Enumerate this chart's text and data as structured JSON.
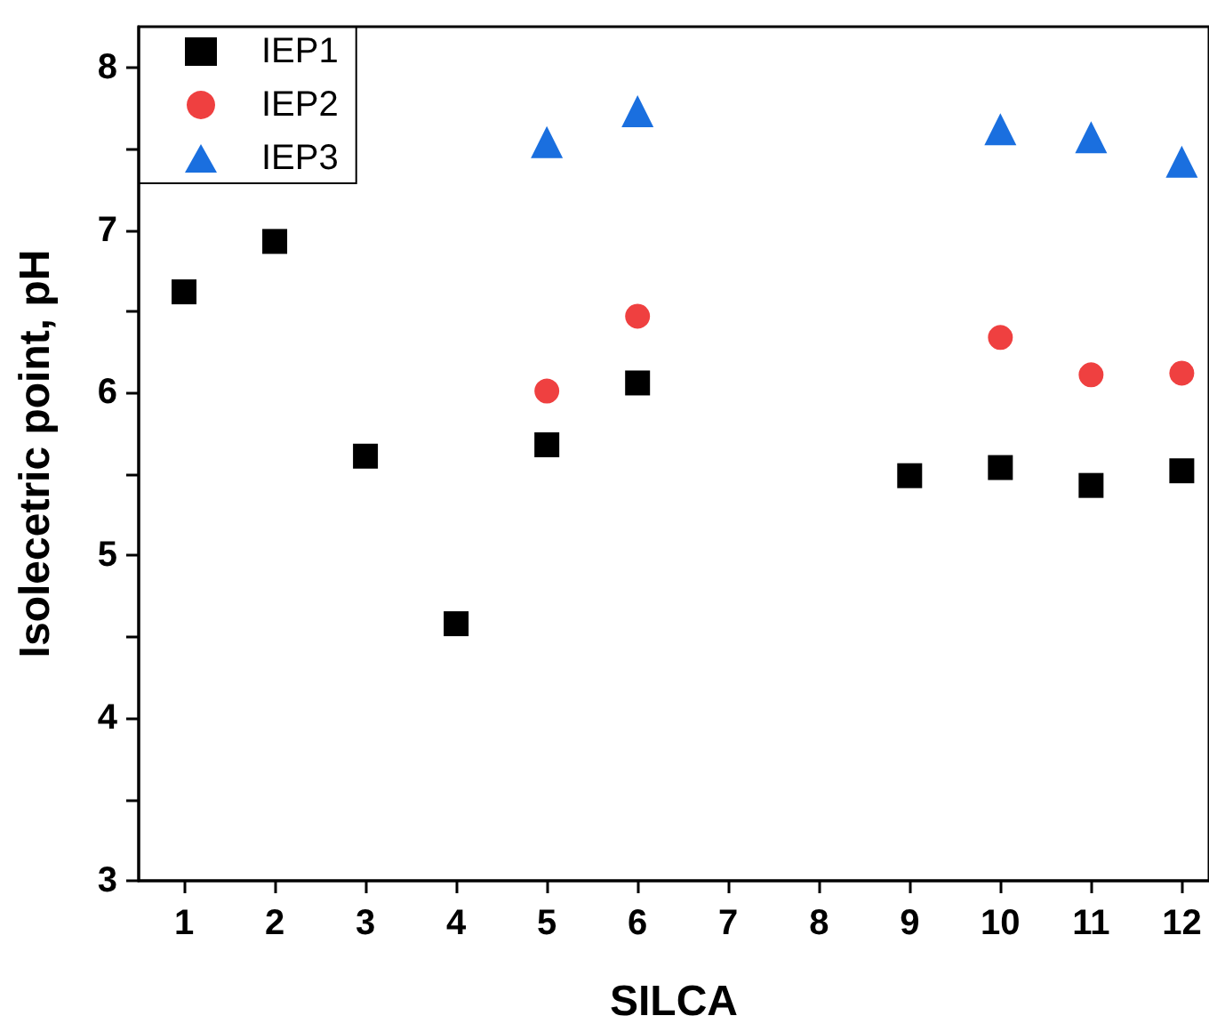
{
  "chart_data": {
    "type": "scatter",
    "xlabel": "SILCA",
    "ylabel": "Isolecetric point, pH",
    "series": [
      {
        "name": "IEP1",
        "color": "#000000",
        "marker": "square",
        "x": [
          1,
          2,
          3,
          4,
          5,
          6,
          9,
          10,
          11,
          12
        ],
        "values": [
          6.62,
          6.93,
          5.61,
          4.58,
          5.68,
          6.06,
          5.49,
          5.54,
          5.43,
          5.52
        ]
      },
      {
        "name": "IEP2",
        "color": "#ef4040",
        "marker": "circle",
        "x": [
          5,
          6,
          10,
          11,
          12
        ],
        "values": [
          6.01,
          6.47,
          6.34,
          6.11,
          6.12
        ]
      },
      {
        "name": "IEP3",
        "color": "#1a6fdf",
        "marker": "triangle",
        "x": [
          5,
          6,
          10,
          11,
          12
        ],
        "values": [
          7.54,
          7.73,
          7.62,
          7.57,
          7.42
        ]
      }
    ],
    "xlim": [
      0.5,
      12.3
    ],
    "xticks": [
      1,
      2,
      3,
      4,
      5,
      6,
      7,
      8,
      9,
      10,
      11,
      12
    ],
    "ylim": [
      3,
      8.25
    ],
    "yticks": [
      3,
      {
        "value": 3.5,
        "label": null
      },
      4,
      {
        "value": 4.5,
        "label": null
      },
      5,
      {
        "value": 5.5,
        "label": null
      },
      6,
      {
        "value": 6.5,
        "label": null
      },
      7,
      {
        "value": 7.5,
        "label": null
      },
      8
    ],
    "legend": "top left",
    "grid": false
  }
}
